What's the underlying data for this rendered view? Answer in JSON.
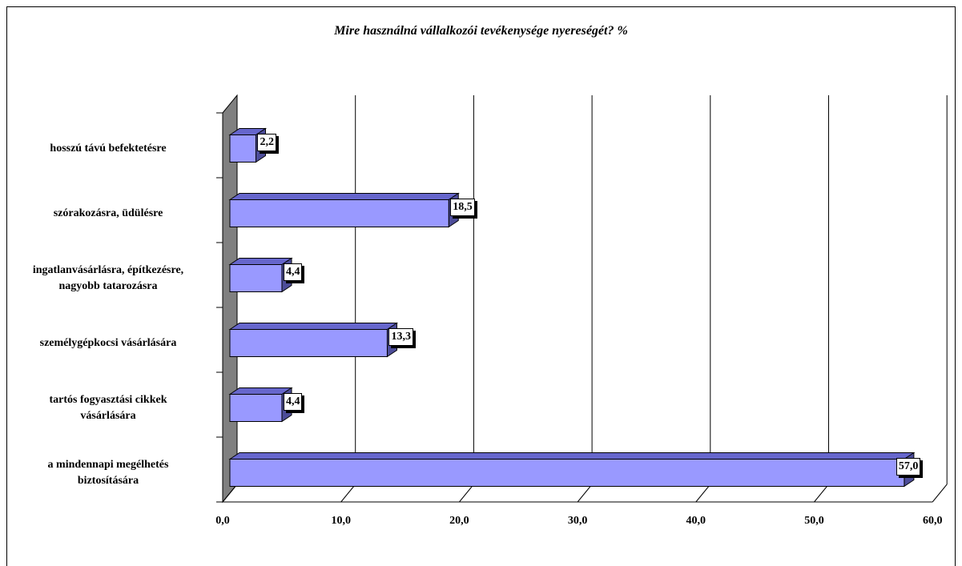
{
  "chart_data": {
    "type": "bar",
    "orientation": "horizontal",
    "title": "Mire használná vállalkozói tevékenysége nyereségét? %",
    "categories": [
      "hosszú távú befektetésre",
      "szórakozásra, üdülésre",
      "ingatlanvásárlásra, építkezésre, nagyobb tatarozásra",
      "személygépkocsi vásárlására",
      "tartós fogyasztási cikkek vásárlására",
      "a mindennapi megélhetés biztosítására"
    ],
    "category_lines": [
      [
        "hosszú távú befektetésre"
      ],
      [
        "szórakozásra, üdülésre"
      ],
      [
        "ingatlanvásárlásra, építkezésre,",
        "nagyobb tatarozásra"
      ],
      [
        "személygépkocsi vásárlására"
      ],
      [
        "tartós fogyasztási cikkek",
        "vásárlására"
      ],
      [
        "a mindennapi megélhetés",
        "biztosítására"
      ]
    ],
    "values": [
      2.2,
      18.5,
      4.4,
      13.3,
      4.4,
      57.0
    ],
    "value_labels": [
      "2,2",
      "18,5",
      "4,4",
      "13,3",
      "4,4",
      "57,0"
    ],
    "xlim": [
      0,
      60
    ],
    "xticks": [
      0,
      10,
      20,
      30,
      40,
      50,
      60
    ],
    "xtick_labels": [
      "0,0",
      "10,0",
      "20,0",
      "30,0",
      "40,0",
      "50,0",
      "60,0"
    ],
    "grid": true,
    "legend": "none",
    "bar_color": "#9999ff"
  }
}
